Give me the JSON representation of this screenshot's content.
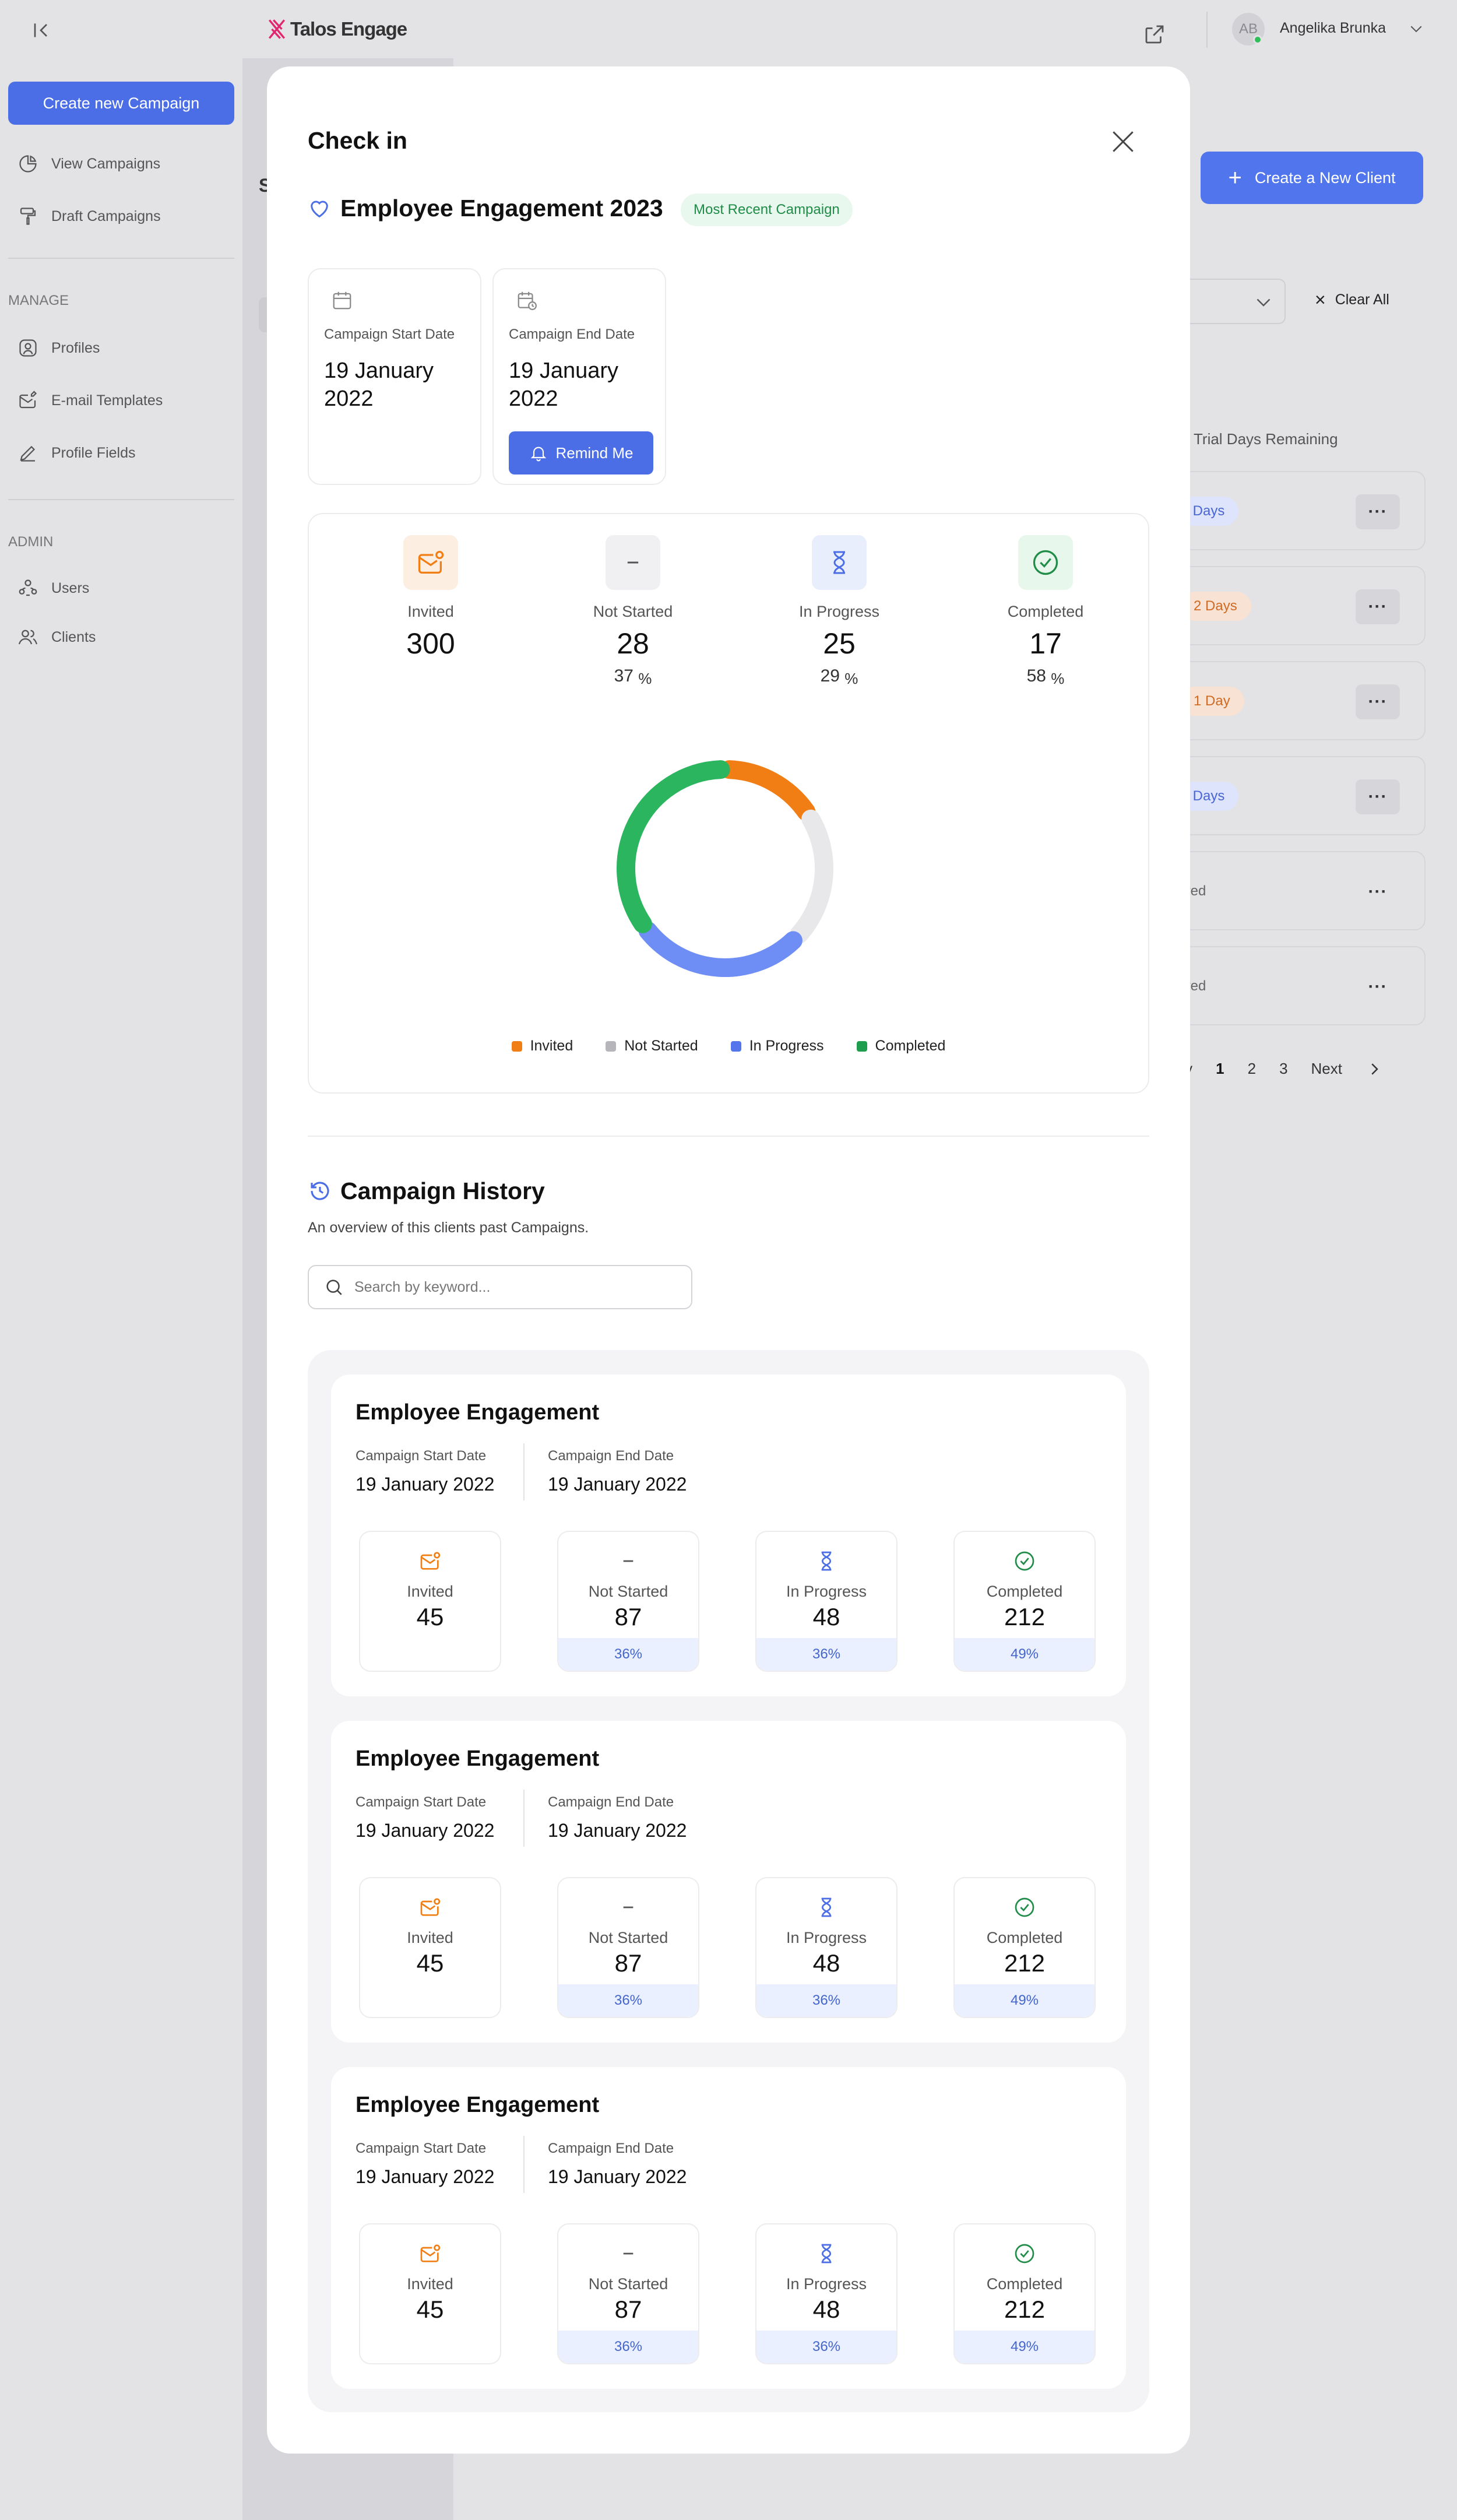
{
  "app": {
    "brand": "Talos Engage"
  },
  "user": {
    "initials": "AB",
    "name": "Angelika Brunka"
  },
  "sidebar": {
    "create_label": "Create new Campaign",
    "items_top": [
      {
        "label": "View Campaigns",
        "icon": "pie-chart-icon"
      },
      {
        "label": "Draft Campaigns",
        "icon": "paint-roller-icon"
      }
    ],
    "manage_title": "MANAGE",
    "items_manage": [
      {
        "label": "Profiles",
        "icon": "user-square-icon"
      },
      {
        "label": "E-mail Templates",
        "icon": "mail-edit-icon"
      },
      {
        "label": "Profile Fields",
        "icon": "pencil-icon"
      }
    ],
    "admin_title": "ADMIN",
    "items_admin": [
      {
        "label": "Users",
        "icon": "users-network-icon"
      },
      {
        "label": "Clients",
        "icon": "users-icon"
      }
    ]
  },
  "background": {
    "create_client_label": "Create a New Client",
    "clear_all_label": "Clear All",
    "trial_header": "Trial Days Remaining",
    "rows": [
      {
        "status": "s Days",
        "tone": "blue"
      },
      {
        "status": "2 Days",
        "tone": "orange"
      },
      {
        "status": "1 Day",
        "tone": "orange"
      },
      {
        "status": "s Days",
        "tone": "blue"
      },
      {
        "status": "pired",
        "tone": "none"
      },
      {
        "status": "pired",
        "tone": "none"
      }
    ],
    "row_menu_label": "···",
    "pager": {
      "prev": "rev",
      "pages": [
        "1",
        "2",
        "3"
      ],
      "next": "Next"
    },
    "partial_letter": "S"
  },
  "modal": {
    "title": "Check in",
    "campaign_name": "Employee Engagement 2023",
    "badge": "Most Recent Campaign",
    "start_label": "Campaign Start Date",
    "start_value": "19 January 2022",
    "end_label": "Campaign End Date",
    "end_value": "19 January 2022",
    "remind_label": "Remind Me",
    "stats": {
      "invited": {
        "label": "Invited",
        "value": "300"
      },
      "not_started": {
        "label": "Not Started",
        "value": "28",
        "pct": "37",
        "unit": "%"
      },
      "in_progress": {
        "label": "In Progress",
        "value": "25",
        "pct": "29",
        "unit": "%"
      },
      "completed": {
        "label": "Completed",
        "value": "17",
        "pct": "58",
        "unit": "%"
      }
    },
    "chart_data": {
      "type": "pie",
      "categories": [
        "Invited",
        "Not Started",
        "In Progress",
        "Completed"
      ],
      "values": [
        15,
        20,
        26,
        33
      ],
      "colors": [
        "#f07e14",
        "#e8e8ea",
        "#6f8ef5",
        "#2bb55e"
      ],
      "legend_placement": "bottom"
    },
    "history": {
      "title": "Campaign History",
      "subtitle": "An overview of this clients past Campaigns.",
      "search_placeholder": "Search by keyword...",
      "cards": [
        {
          "title": "Employee Engagement",
          "start_label": "Campaign Start Date",
          "start_value": "19 January 2022",
          "end_label": "Campaign End Date",
          "end_value": "19 January 2022",
          "invited": {
            "label": "Invited",
            "value": "45"
          },
          "not_started": {
            "label": "Not Started",
            "value": "87",
            "pct": "36%"
          },
          "in_progress": {
            "label": "In Progress",
            "value": "48",
            "pct": "36%"
          },
          "completed": {
            "label": "Completed",
            "value": "212",
            "pct": "49%"
          }
        },
        {
          "title": "Employee Engagement",
          "start_label": "Campaign Start Date",
          "start_value": "19 January 2022",
          "end_label": "Campaign End Date",
          "end_value": "19 January 2022",
          "invited": {
            "label": "Invited",
            "value": "45"
          },
          "not_started": {
            "label": "Not Started",
            "value": "87",
            "pct": "36%"
          },
          "in_progress": {
            "label": "In Progress",
            "value": "48",
            "pct": "36%"
          },
          "completed": {
            "label": "Completed",
            "value": "212",
            "pct": "49%"
          }
        },
        {
          "title": "Employee Engagement",
          "start_label": "Campaign Start Date",
          "start_value": "19 January 2022",
          "end_label": "Campaign End Date",
          "end_value": "19 January 2022",
          "invited": {
            "label": "Invited",
            "value": "45"
          },
          "not_started": {
            "label": "Not Started",
            "value": "87",
            "pct": "36%"
          },
          "in_progress": {
            "label": "In Progress",
            "value": "48",
            "pct": "36%"
          },
          "completed": {
            "label": "Completed",
            "value": "212",
            "pct": "49%"
          }
        }
      ]
    }
  }
}
